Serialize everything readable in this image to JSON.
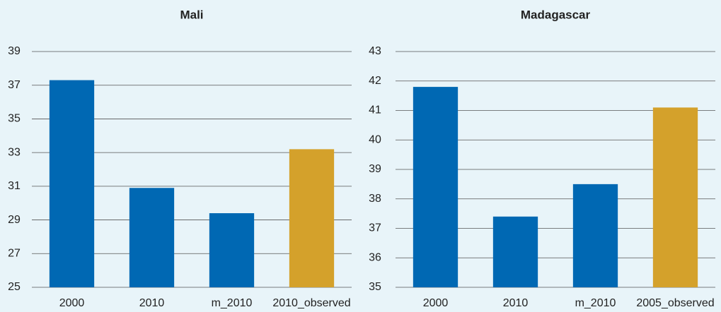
{
  "chart_data": [
    {
      "type": "bar",
      "title": "Mali",
      "categories": [
        "2000",
        "2010",
        "m_2010",
        "2010_observed"
      ],
      "values": [
        37.3,
        30.9,
        29.4,
        33.2
      ],
      "colors": [
        "#0068b3",
        "#0068b3",
        "#0068b3",
        "#d4a12b"
      ],
      "ylim": [
        25,
        39
      ],
      "yticks": [
        25,
        27,
        29,
        31,
        33,
        35,
        37,
        39
      ],
      "grid": true
    },
    {
      "type": "bar",
      "title": "Madagascar",
      "categories": [
        "2000",
        "2010",
        "m_2010",
        "2005_observed"
      ],
      "values": [
        41.8,
        37.4,
        38.5,
        41.1
      ],
      "colors": [
        "#0068b3",
        "#0068b3",
        "#0068b3",
        "#d4a12b"
      ],
      "ylim": [
        35,
        43
      ],
      "yticks": [
        35,
        36,
        37,
        38,
        39,
        40,
        41,
        42,
        43
      ],
      "grid": true
    }
  ]
}
